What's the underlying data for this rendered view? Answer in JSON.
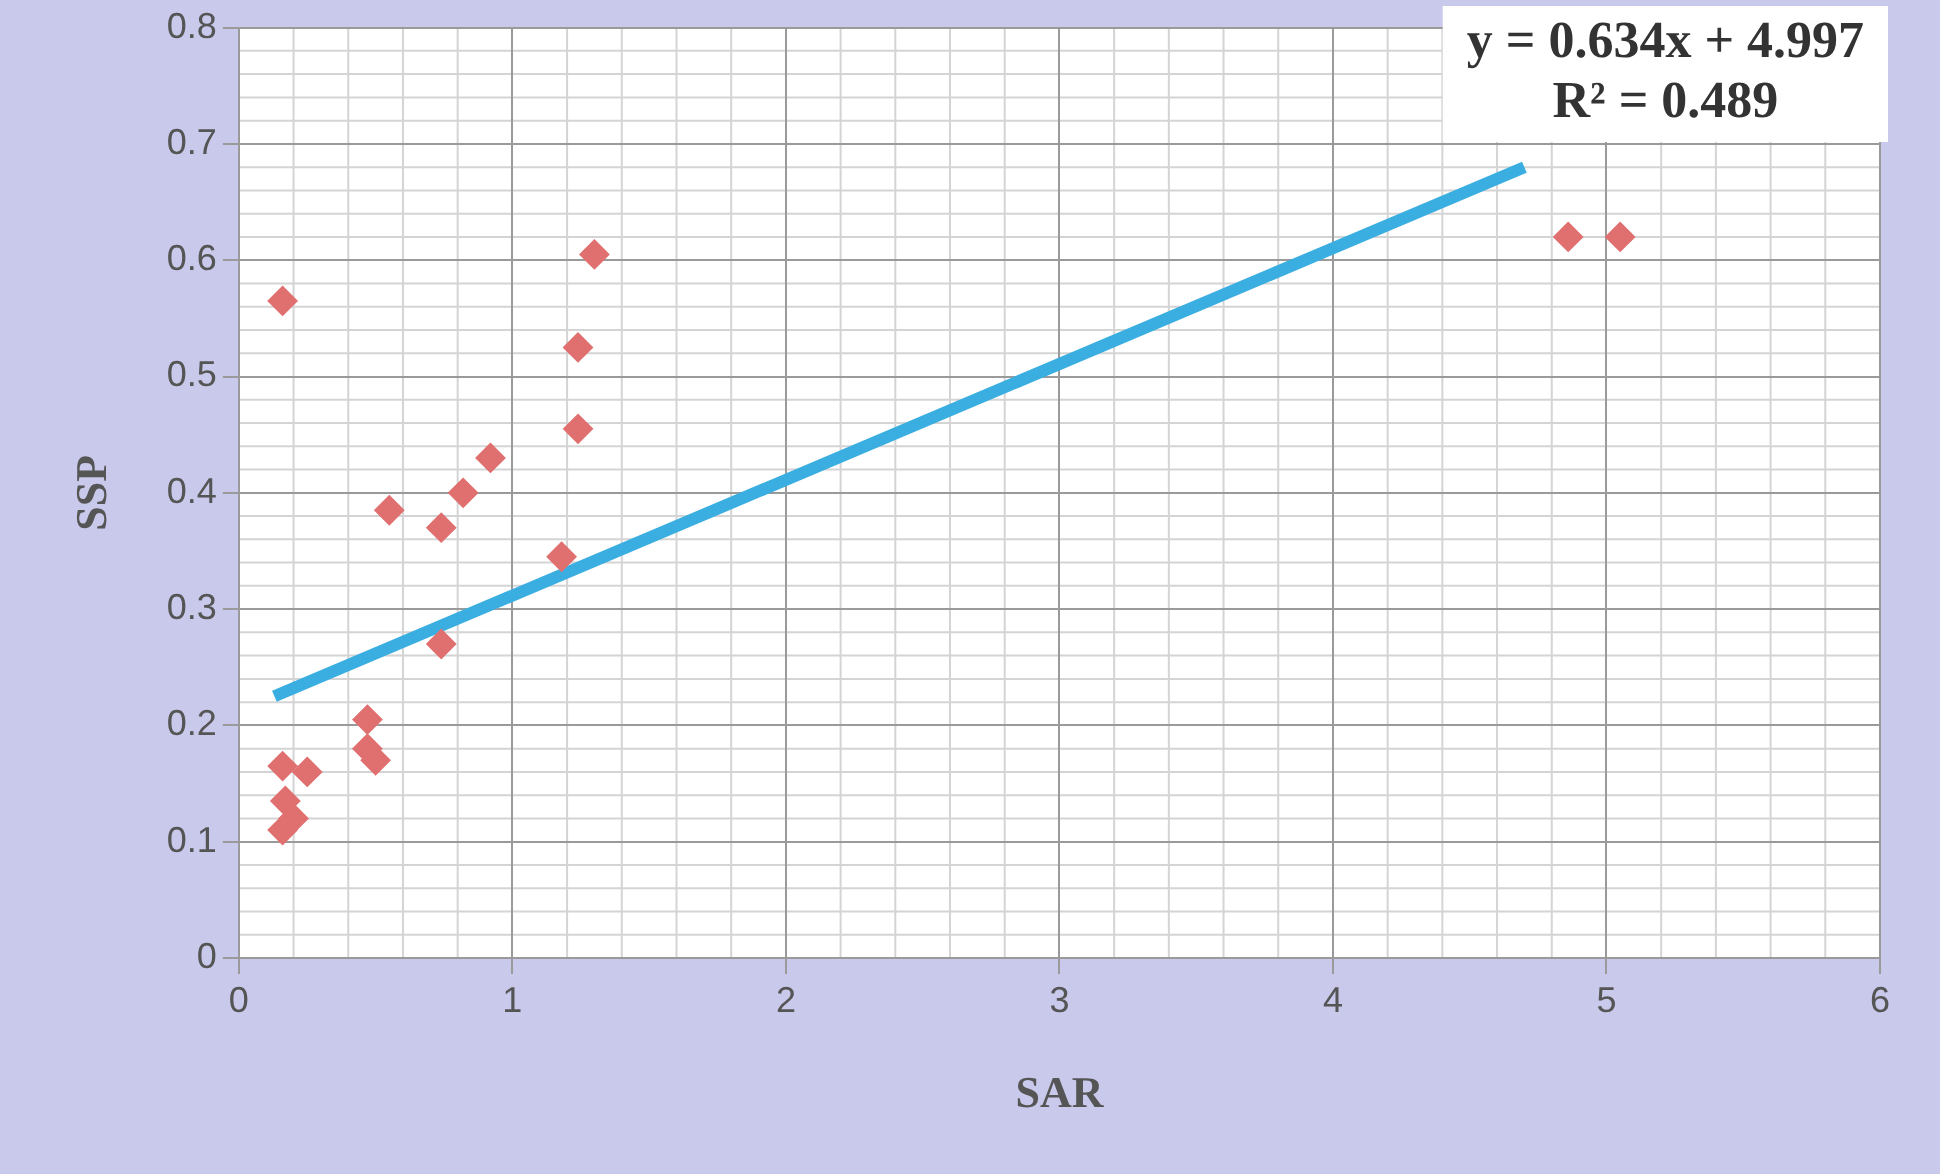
{
  "chart_data": {
    "type": "scatter",
    "xlabel": "SAR",
    "ylabel": "SSP",
    "xlim": [
      0,
      6
    ],
    "xticks": [
      0,
      1,
      2,
      3,
      4,
      5,
      6
    ],
    "ylim": [
      0,
      0.8
    ],
    "yticks": [
      0,
      0.1,
      0.2,
      0.3,
      0.4,
      0.5,
      0.6,
      0.7,
      0.8
    ],
    "grid": true,
    "legend": false,
    "marker": "diamond",
    "annotations": [
      "y = 0.634x + 4.997",
      "R² = 0.489"
    ],
    "series": [
      {
        "color": "#e07070",
        "x": [
          0.16,
          0.55,
          0.74,
          0.82,
          0.92,
          1.18,
          1.24,
          1.24,
          1.3,
          0.74,
          0.16,
          0.25,
          0.17,
          0.16,
          0.2,
          0.47,
          0.47,
          0.5,
          4.86,
          5.05
        ],
        "values": [
          0.565,
          0.385,
          0.37,
          0.4,
          0.43,
          0.345,
          0.455,
          0.525,
          0.605,
          0.27,
          0.165,
          0.16,
          0.135,
          0.11,
          0.12,
          0.205,
          0.18,
          0.17,
          0.62,
          0.62
        ]
      },
      {
        "type": "line",
        "color": "#3aaee0",
        "marker": "none",
        "x": [
          0.13,
          4.7
        ],
        "values": [
          0.225,
          0.68
        ]
      }
    ]
  }
}
